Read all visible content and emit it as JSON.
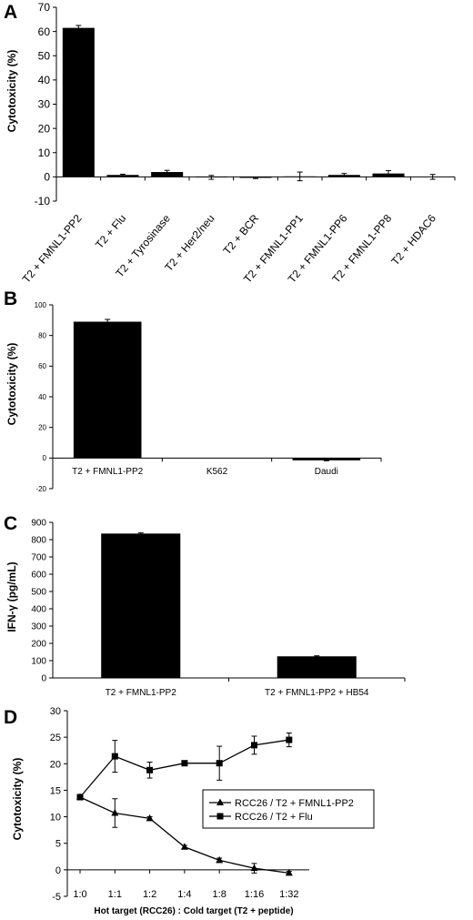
{
  "chart_data": [
    {
      "panel": "A",
      "type": "bar",
      "ylabel": "Cytotoxicity (%)",
      "ylim": [
        -10,
        70
      ],
      "yticks": [
        -10,
        0,
        10,
        20,
        30,
        40,
        50,
        60,
        70
      ],
      "categories": [
        "T2 + FMNL1-PP2",
        "T2 + Flu",
        "T2 + Tyrosinase",
        "T2 + Her2/neu",
        "T2 + BCR",
        "T2 + FMNL1-PP1",
        "T2 + FMNL1-PP6",
        "T2 + FMNL1-PP8",
        "T2 + HDAC6"
      ],
      "values": [
        61.5,
        0.8,
        2.0,
        -0.2,
        -0.4,
        0.2,
        0.8,
        1.4,
        0.0
      ],
      "errors": [
        1.0,
        0.3,
        0.7,
        0.8,
        0.3,
        1.8,
        0.6,
        1.2,
        1.0
      ],
      "bar_color": "#000000"
    },
    {
      "panel": "B",
      "type": "bar",
      "ylabel": "Cytotoxicity (%)",
      "ylim": [
        -20,
        100
      ],
      "yticks": [
        -20,
        0,
        20,
        40,
        60,
        80,
        100
      ],
      "categories": [
        "T2 + FMNL1-PP2",
        "K562",
        "Daudi"
      ],
      "values": [
        89,
        0,
        -1.5
      ],
      "errors": [
        1.5,
        0,
        0.3
      ],
      "bar_color": "#000000"
    },
    {
      "panel": "C",
      "type": "bar",
      "ylabel": "IFN-γ (pg/mL)",
      "ylim": [
        0,
        900
      ],
      "yticks": [
        0,
        100,
        200,
        300,
        400,
        500,
        600,
        700,
        800,
        900
      ],
      "categories": [
        "T2 + FMNL1-PP2",
        "T2 + FMNL1-PP2 + HB54"
      ],
      "values": [
        835,
        125
      ],
      "errors": [
        4,
        3
      ],
      "bar_color": "#000000"
    },
    {
      "panel": "D",
      "type": "line",
      "ylabel": "Cytotoxicity (%)",
      "xlabel": "Hot target (RCC26) : Cold target (T2 + peptide)",
      "ylim": [
        -5,
        30
      ],
      "yticks": [
        -5,
        0,
        5,
        10,
        15,
        20,
        25,
        30
      ],
      "categories": [
        "1:0",
        "1:1",
        "1:2",
        "1:4",
        "1:8",
        "1:16",
        "1:32"
      ],
      "legend_position": "right",
      "series": [
        {
          "name": "RCC26 / T2 + FMNL1-PP2",
          "marker": "triangle",
          "values": [
            13.7,
            10.7,
            9.7,
            4.3,
            1.8,
            0.3,
            -0.6
          ],
          "errors": [
            0.4,
            2.7,
            0.3,
            0.3,
            0.4,
            0.9,
            0.3
          ]
        },
        {
          "name": "RCC26 / T2 + Flu",
          "marker": "square",
          "values": [
            13.7,
            21.4,
            18.8,
            20.1,
            20.1,
            23.5,
            24.5
          ],
          "errors": [
            0.4,
            3.0,
            1.5,
            0.3,
            3.2,
            1.7,
            1.3
          ]
        }
      ]
    }
  ]
}
